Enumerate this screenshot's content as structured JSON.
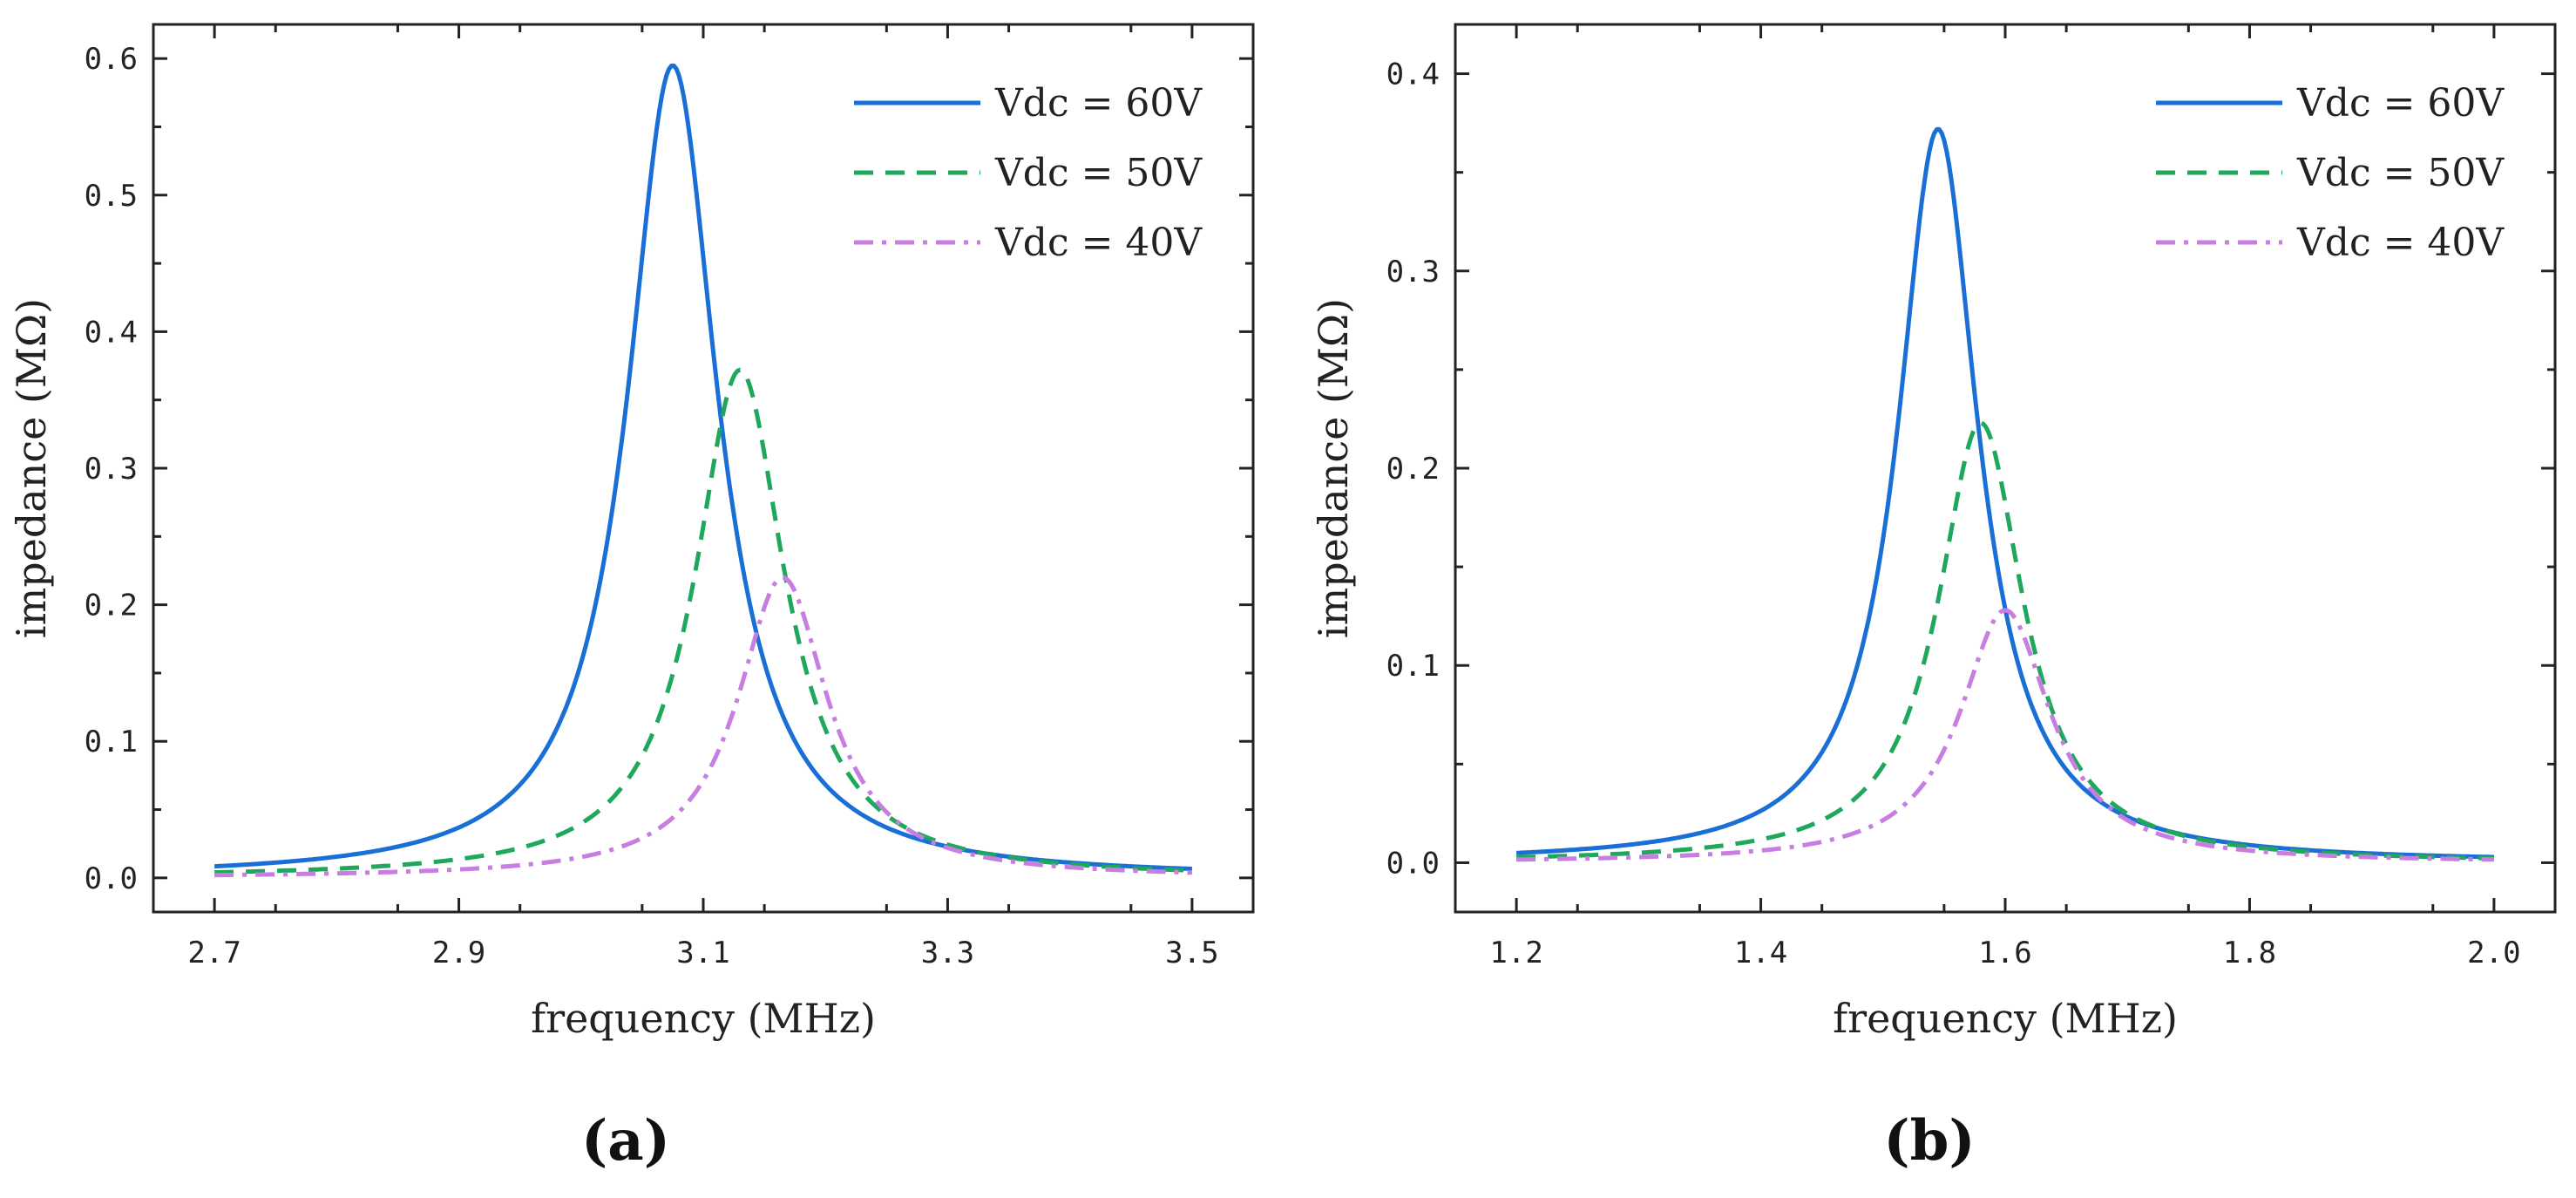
{
  "chart_data": [
    {
      "type": "line",
      "panel_label": "(a)",
      "xlabel": "frequency (MHz)",
      "ylabel": "impedance (MΩ)",
      "xlim": [
        2.65,
        3.55
      ],
      "ylim": [
        -0.025,
        0.625
      ],
      "xticks": [
        2.7,
        2.9,
        3.1,
        3.3,
        3.5
      ],
      "xtick_labels": [
        "2.7",
        "2.9",
        "3.1",
        "3.3",
        "3.5"
      ],
      "yticks": [
        0.0,
        0.1,
        0.2,
        0.3,
        0.4,
        0.5,
        0.6
      ],
      "ytick_labels": [
        "0.0",
        "0.1",
        "0.2",
        "0.3",
        "0.4",
        "0.5",
        "0.6"
      ],
      "legend_position": "top-right",
      "grid": false,
      "x_range": [
        2.7,
        3.5
      ],
      "series": [
        {
          "name": "Vdc = 60V",
          "style": "solid",
          "color": "#1a6fd6",
          "peak_x": 3.075,
          "peak_y": 0.595,
          "half_width": 0.09,
          "tail": 0.0
        },
        {
          "name": "Vdc = 50V",
          "style": "dashed",
          "color": "#1fa85b",
          "peak_x": 3.13,
          "peak_y": 0.372,
          "half_width": 0.09,
          "tail": 0.0
        },
        {
          "name": "Vdc = 40V",
          "style": "dashdot",
          "color": "#c77ee0",
          "peak_x": 3.165,
          "peak_y": 0.22,
          "half_width": 0.09,
          "tail": 0.0
        }
      ]
    },
    {
      "type": "line",
      "panel_label": "(b)",
      "xlabel": "frequency (MHz)",
      "ylabel": "impedance (MΩ)",
      "xlim": [
        1.15,
        2.05
      ],
      "ylim": [
        -0.025,
        0.425
      ],
      "xticks": [
        1.2,
        1.4,
        1.6,
        1.8,
        2.0
      ],
      "xtick_labels": [
        "1.2",
        "1.4",
        "1.6",
        "1.8",
        "2.0"
      ],
      "yticks": [
        0.0,
        0.1,
        0.2,
        0.3,
        0.4
      ],
      "ytick_labels": [
        "0.0",
        "0.1",
        "0.2",
        "0.3",
        "0.4"
      ],
      "legend_position": "top-right",
      "grid": false,
      "x_range": [
        1.2,
        2.0
      ],
      "series": [
        {
          "name": "Vdc = 60V",
          "style": "solid",
          "color": "#1a6fd6",
          "peak_x": 1.545,
          "peak_y": 0.372,
          "half_width": 0.08,
          "tail": 0.0
        },
        {
          "name": "Vdc = 50V",
          "style": "dashed",
          "color": "#1fa85b",
          "peak_x": 1.58,
          "peak_y": 0.223,
          "half_width": 0.085,
          "tail": 0.0
        },
        {
          "name": "Vdc = 40V",
          "style": "dashdot",
          "color": "#c77ee0",
          "peak_x": 1.6,
          "peak_y": 0.128,
          "half_width": 0.09,
          "tail": 0.0
        }
      ]
    }
  ]
}
